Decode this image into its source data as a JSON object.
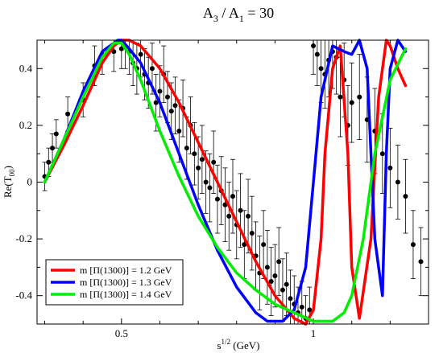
{
  "chart_data": {
    "type": "line",
    "title": {
      "main": "A",
      "sub3": "3",
      "sep": " / A",
      "sub1": "1",
      "tail": " = 30"
    },
    "xlabel": {
      "base": "s",
      "sup": "1/2",
      "tail": " (GeV)"
    },
    "ylabel": {
      "base": "Re(T",
      "sub": "00",
      "tail": ")"
    },
    "xlim": [
      0.28,
      1.3
    ],
    "ylim": [
      -0.5,
      0.5
    ],
    "x_ticks": [
      0.5,
      1
    ],
    "x_tick_labels": [
      "0.5",
      "1"
    ],
    "y_ticks": [
      -0.4,
      -0.2,
      0,
      0.2,
      0.4
    ],
    "y_tick_labels": [
      "-0.4",
      "-0.2",
      "0",
      "0.2",
      "0.4"
    ],
    "legend_position": "bottom-left",
    "series": [
      {
        "name": "m [Π(1300)] = 1.2 GeV",
        "color": "#ff0000",
        "x": [
          0.3,
          0.35,
          0.4,
          0.45,
          0.48,
          0.5,
          0.52,
          0.55,
          0.6,
          0.65,
          0.7,
          0.75,
          0.8,
          0.85,
          0.9,
          0.95,
          0.98,
          1.0,
          1.02,
          1.03,
          1.05,
          1.07,
          1.09,
          1.1,
          1.12,
          1.15,
          1.17,
          1.19,
          1.2,
          1.22,
          1.24
        ],
        "y": [
          0.0,
          0.13,
          0.27,
          0.42,
          0.48,
          0.5,
          0.5,
          0.48,
          0.4,
          0.28,
          0.14,
          0.0,
          -0.14,
          -0.28,
          -0.4,
          -0.48,
          -0.5,
          -0.45,
          -0.2,
          0.1,
          0.4,
          0.48,
          0.1,
          -0.3,
          -0.48,
          -0.2,
          0.3,
          0.5,
          0.48,
          0.4,
          0.34
        ]
      },
      {
        "name": "m [Π(1300)] = 1.3 GeV",
        "color": "#0000ff",
        "x": [
          0.3,
          0.35,
          0.4,
          0.45,
          0.49,
          0.5,
          0.52,
          0.55,
          0.6,
          0.65,
          0.7,
          0.75,
          0.8,
          0.85,
          0.88,
          0.92,
          0.95,
          0.98,
          1.0,
          1.02,
          1.05,
          1.08,
          1.1,
          1.12,
          1.14,
          1.16,
          1.18,
          1.19,
          1.2,
          1.22,
          1.24
        ],
        "y": [
          0.0,
          0.15,
          0.32,
          0.46,
          0.5,
          0.5,
          0.47,
          0.42,
          0.28,
          0.1,
          -0.08,
          -0.24,
          -0.37,
          -0.46,
          -0.49,
          -0.49,
          -0.45,
          -0.3,
          0.0,
          0.3,
          0.48,
          0.46,
          0.45,
          0.5,
          0.4,
          -0.2,
          -0.4,
          0.1,
          0.4,
          0.5,
          0.46
        ]
      },
      {
        "name": "m [Π(1300)] = 1.4 GeV",
        "color": "#00ee00",
        "x": [
          0.3,
          0.35,
          0.4,
          0.45,
          0.48,
          0.5,
          0.52,
          0.55,
          0.6,
          0.65,
          0.7,
          0.75,
          0.8,
          0.85,
          0.9,
          0.95,
          1.0,
          1.05,
          1.08,
          1.1,
          1.13,
          1.16,
          1.2,
          1.24
        ],
        "y": [
          0.0,
          0.15,
          0.3,
          0.44,
          0.49,
          0.49,
          0.45,
          0.36,
          0.18,
          0.02,
          -0.12,
          -0.23,
          -0.32,
          -0.38,
          -0.43,
          -0.46,
          -0.49,
          -0.49,
          -0.46,
          -0.4,
          -0.2,
          0.1,
          0.36,
          0.47
        ]
      }
    ],
    "experimental_points": {
      "x": [
        0.3,
        0.31,
        0.32,
        0.33,
        0.36,
        0.4,
        0.43,
        0.45,
        0.48,
        0.5,
        0.51,
        0.52,
        0.53,
        0.54,
        0.55,
        0.56,
        0.57,
        0.58,
        0.59,
        0.6,
        0.61,
        0.62,
        0.63,
        0.64,
        0.65,
        0.66,
        0.67,
        0.68,
        0.69,
        0.7,
        0.71,
        0.72,
        0.73,
        0.74,
        0.75,
        0.76,
        0.77,
        0.78,
        0.79,
        0.8,
        0.81,
        0.82,
        0.83,
        0.84,
        0.85,
        0.86,
        0.87,
        0.88,
        0.89,
        0.9,
        0.91,
        0.92,
        0.93,
        0.94,
        0.95,
        0.96,
        0.97,
        0.98,
        0.99,
        1.0,
        1.01,
        1.02,
        1.03,
        1.04,
        1.05,
        1.06,
        1.07,
        1.08,
        1.09,
        1.1,
        1.12,
        1.14,
        1.16,
        1.18,
        1.2,
        1.22,
        1.24,
        1.26,
        1.28
      ],
      "y": [
        0.02,
        0.07,
        0.12,
        0.17,
        0.24,
        0.29,
        0.41,
        0.45,
        0.46,
        0.47,
        0.48,
        0.46,
        0.42,
        0.4,
        0.45,
        0.38,
        0.35,
        0.4,
        0.28,
        0.32,
        0.38,
        0.3,
        0.25,
        0.27,
        0.18,
        0.26,
        0.12,
        0.2,
        0.1,
        0.05,
        0.08,
        0.0,
        -0.02,
        0.07,
        -0.06,
        -0.03,
        -0.08,
        -0.12,
        -0.05,
        -0.15,
        -0.1,
        -0.22,
        -0.12,
        -0.18,
        -0.26,
        -0.32,
        -0.22,
        -0.3,
        -0.35,
        -0.33,
        -0.28,
        -0.38,
        -0.36,
        -0.41,
        -0.43,
        -0.46,
        -0.44,
        -0.48,
        -0.45,
        0.48,
        0.45,
        0.4,
        0.38,
        0.43,
        0.46,
        0.44,
        0.3,
        0.36,
        0.2,
        0.28,
        0.3,
        0.22,
        0.18,
        0.1,
        0.05,
        0.0,
        -0.05,
        -0.22,
        -0.28
      ],
      "err": [
        0.05,
        0.05,
        0.05,
        0.05,
        0.06,
        0.06,
        0.07,
        0.07,
        0.07,
        0.07,
        0.08,
        0.08,
        0.08,
        0.09,
        0.08,
        0.09,
        0.09,
        0.09,
        0.1,
        0.09,
        0.1,
        0.09,
        0.1,
        0.1,
        0.11,
        0.1,
        0.11,
        0.1,
        0.11,
        0.11,
        0.12,
        0.11,
        0.12,
        0.11,
        0.12,
        0.12,
        0.13,
        0.12,
        0.13,
        0.12,
        0.13,
        0.12,
        0.13,
        0.13,
        0.12,
        0.13,
        0.12,
        0.13,
        0.12,
        0.11,
        0.12,
        0.11,
        0.11,
        0.1,
        0.1,
        0.09,
        0.09,
        0.08,
        0.08,
        0.1,
        0.11,
        0.12,
        0.12,
        0.13,
        0.13,
        0.13,
        0.14,
        0.13,
        0.14,
        0.14,
        0.15,
        0.15,
        0.15,
        0.14,
        0.14,
        0.13,
        0.13,
        0.12,
        0.12
      ]
    }
  }
}
